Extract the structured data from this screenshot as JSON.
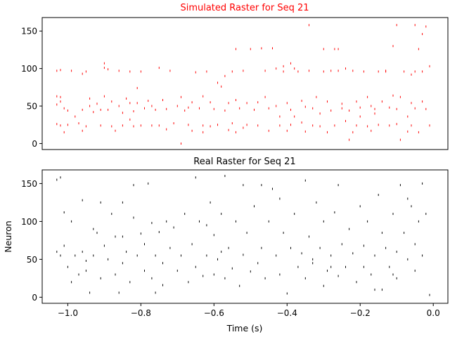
{
  "chart_data": [
    {
      "type": "scatter",
      "marker": "spike",
      "title": "Simulated Raster for Seq 21",
      "title_color": "#ff0000",
      "color": "#ff0000",
      "xlabel": "",
      "ylabel": "",
      "xlim": [
        -1.07,
        0.04
      ],
      "ylim": [
        -8,
        168
      ],
      "xticks": [],
      "yticks": [
        0,
        50,
        100,
        150
      ],
      "ytick_labels": [
        "0",
        "50",
        "100",
        "150"
      ],
      "grid": false,
      "points": [
        [
          -1.03,
          97
        ],
        [
          -1.03,
          63
        ],
        [
          -1.03,
          52
        ],
        [
          -1.03,
          26
        ],
        [
          -1.02,
          98
        ],
        [
          -1.02,
          62
        ],
        [
          -1.02,
          56
        ],
        [
          -1.02,
          24
        ],
        [
          -1.01,
          47
        ],
        [
          -1.01,
          15
        ],
        [
          -1.0,
          44
        ],
        [
          -1.0,
          25
        ],
        [
          -0.99,
          97
        ],
        [
          -0.98,
          36
        ],
        [
          -0.97,
          27
        ],
        [
          -0.96,
          93
        ],
        [
          -0.96,
          45
        ],
        [
          -0.96,
          17
        ],
        [
          -0.95,
          23
        ],
        [
          -0.95,
          96
        ],
        [
          -0.94,
          60
        ],
        [
          -0.94,
          50
        ],
        [
          -0.93,
          42
        ],
        [
          -0.92,
          53
        ],
        [
          -0.91,
          45
        ],
        [
          -0.91,
          24
        ],
        [
          -0.9,
          101
        ],
        [
          -0.9,
          107
        ],
        [
          -0.9,
          63
        ],
        [
          -0.89,
          99
        ],
        [
          -0.89,
          45
        ],
        [
          -0.88,
          23
        ],
        [
          -0.88,
          56
        ],
        [
          -0.87,
          17
        ],
        [
          -0.86,
          97
        ],
        [
          -0.86,
          50
        ],
        [
          -0.85,
          41
        ],
        [
          -0.85,
          24
        ],
        [
          -0.84,
          60
        ],
        [
          -0.83,
          54
        ],
        [
          -0.83,
          96
        ],
        [
          -0.82,
          23
        ],
        [
          -0.82,
          43
        ],
        [
          -0.81,
          74
        ],
        [
          -0.81,
          54
        ],
        [
          -0.8,
          96
        ],
        [
          -0.8,
          24
        ],
        [
          -0.79,
          47
        ],
        [
          -0.78,
          57
        ],
        [
          -0.77,
          50
        ],
        [
          -0.77,
          24
        ],
        [
          -0.76,
          45
        ],
        [
          -0.75,
          101
        ],
        [
          -0.75,
          24
        ],
        [
          -0.74,
          58
        ],
        [
          -0.73,
          46
        ],
        [
          -0.73,
          19
        ],
        [
          -0.72,
          97
        ],
        [
          -0.71,
          27
        ],
        [
          -0.7,
          50
        ],
        [
          -0.69,
          62
        ],
        [
          -0.69,
          0
        ],
        [
          -0.68,
          44
        ],
        [
          -0.67,
          25
        ],
        [
          -0.67,
          48
        ],
        [
          -0.66,
          55
        ],
        [
          -0.66,
          17
        ],
        [
          -0.65,
          95
        ],
        [
          -0.64,
          47
        ],
        [
          -0.63,
          24
        ],
        [
          -0.63,
          63
        ],
        [
          -0.62,
          96
        ],
        [
          -0.61,
          55
        ],
        [
          -0.61,
          23
        ],
        [
          -0.6,
          46
        ],
        [
          -0.59,
          25
        ],
        [
          -0.59,
          81
        ],
        [
          -0.58,
          76
        ],
        [
          -0.57,
          90
        ],
        [
          -0.57,
          44
        ],
        [
          -0.56,
          54
        ],
        [
          -0.56,
          18
        ],
        [
          -0.55,
          96
        ],
        [
          -0.55,
          27
        ],
        [
          -0.54,
          58
        ],
        [
          -0.54,
          15
        ],
        [
          -0.53,
          47
        ],
        [
          -0.52,
          97
        ],
        [
          -0.52,
          21
        ],
        [
          -0.51,
          54
        ],
        [
          -0.51,
          25
        ],
        [
          -0.49,
          45
        ],
        [
          -0.48,
          55
        ],
        [
          -0.48,
          24
        ],
        [
          -0.47,
          127
        ],
        [
          -0.46,
          97
        ],
        [
          -0.46,
          62
        ],
        [
          -0.45,
          17
        ],
        [
          -0.45,
          47
        ],
        [
          -0.44,
          127
        ],
        [
          -0.43,
          100
        ],
        [
          -0.43,
          50
        ],
        [
          -0.42,
          36
        ],
        [
          -0.42,
          24
        ],
        [
          -0.41,
          103
        ],
        [
          -0.41,
          96
        ],
        [
          -0.4,
          54
        ],
        [
          -0.4,
          17
        ],
        [
          -0.39,
          107
        ],
        [
          -0.39,
          45
        ],
        [
          -0.38,
          100
        ],
        [
          -0.38,
          36
        ],
        [
          -0.37,
          96
        ],
        [
          -0.36,
          57
        ],
        [
          -0.36,
          28
        ],
        [
          -0.35,
          49
        ],
        [
          -0.35,
          16
        ],
        [
          -0.34,
          97
        ],
        [
          -0.33,
          47
        ],
        [
          -0.33,
          24
        ],
        [
          -0.32,
          62
        ],
        [
          -0.31,
          40
        ],
        [
          -0.31,
          23
        ],
        [
          -0.3,
          96
        ],
        [
          -0.29,
          56
        ],
        [
          -0.29,
          15
        ],
        [
          -0.28,
          44
        ],
        [
          -0.27,
          126
        ],
        [
          -0.27,
          24
        ],
        [
          -0.26,
          97
        ],
        [
          -0.25,
          53
        ],
        [
          -0.25,
          47
        ],
        [
          -0.24,
          30
        ],
        [
          -0.23,
          44
        ],
        [
          -0.22,
          97
        ],
        [
          -0.22,
          15
        ],
        [
          -0.21,
          56
        ],
        [
          -0.21,
          24
        ],
        [
          -0.2,
          48
        ],
        [
          -0.19,
          96
        ],
        [
          -0.18,
          23
        ],
        [
          -0.18,
          62
        ],
        [
          -0.17,
          50
        ],
        [
          -0.17,
          17
        ],
        [
          -0.16,
          46
        ],
        [
          -0.15,
          96
        ],
        [
          -0.15,
          25
        ],
        [
          -0.14,
          56
        ],
        [
          -0.13,
          96
        ],
        [
          -0.12,
          48
        ],
        [
          -0.12,
          24
        ],
        [
          -0.11,
          130
        ],
        [
          -0.11,
          64
        ],
        [
          -0.1,
          46
        ],
        [
          -0.1,
          26
        ],
        [
          -0.09,
          5
        ],
        [
          -0.08,
          96
        ],
        [
          -0.07,
          36
        ],
        [
          -0.07,
          16
        ],
        [
          -0.06,
          54
        ],
        [
          -0.06,
          24
        ],
        [
          -0.05,
          96
        ],
        [
          -0.05,
          47
        ],
        [
          -0.04,
          126
        ],
        [
          -0.04,
          15
        ],
        [
          -0.03,
          96
        ],
        [
          -0.03,
          56
        ],
        [
          -0.02,
          46
        ],
        [
          -0.01,
          24
        ],
        [
          -0.01,
          103
        ],
        [
          -0.54,
          126
        ],
        [
          -0.5,
          126
        ],
        [
          -0.34,
          158
        ],
        [
          -0.3,
          126
        ],
        [
          -0.26,
          126
        ],
        [
          -0.24,
          100
        ],
        [
          -0.1,
          158
        ],
        [
          -0.05,
          158
        ],
        [
          -0.03,
          146
        ],
        [
          -0.02,
          156
        ],
        [
          -0.28,
          97
        ],
        [
          -0.13,
          97
        ],
        [
          -0.06,
          92
        ],
        [
          -0.09,
          62
        ],
        [
          -0.16,
          40
        ],
        [
          -0.2,
          36
        ],
        [
          -0.23,
          5
        ],
        [
          -0.39,
          25
        ],
        [
          -0.63,
          15
        ],
        [
          -0.83,
          32
        ]
      ]
    },
    {
      "type": "scatter",
      "marker": "spike",
      "title": "Real Raster for Seq 21",
      "title_color": "#000000",
      "color": "#000000",
      "xlabel": "Time (s)",
      "ylabel": "Neuron",
      "xlim": [
        -1.07,
        0.04
      ],
      "ylim": [
        -8,
        168
      ],
      "xticks": [
        -1.0,
        -0.8,
        -0.6,
        -0.4,
        -0.2,
        0.0
      ],
      "xtick_labels": [
        "−1.0",
        "−0.8",
        "−0.6",
        "−0.4",
        "−0.2",
        "0.0"
      ],
      "yticks": [
        0,
        50,
        100,
        150
      ],
      "ytick_labels": [
        "0",
        "50",
        "100",
        "150"
      ],
      "grid": false,
      "points": [
        [
          -1.03,
          155
        ],
        [
          -1.03,
          60
        ],
        [
          -1.02,
          158
        ],
        [
          -1.02,
          55
        ],
        [
          -1.01,
          112
        ],
        [
          -1.01,
          68
        ],
        [
          -1.0,
          40
        ],
        [
          -0.99,
          100
        ],
        [
          -0.99,
          20
        ],
        [
          -0.98,
          55
        ],
        [
          -0.97,
          30
        ],
        [
          -0.96,
          128
        ],
        [
          -0.96,
          60
        ],
        [
          -0.95,
          35
        ],
        [
          -0.94,
          6
        ],
        [
          -0.93,
          90
        ],
        [
          -0.93,
          55
        ],
        [
          -0.92,
          85
        ],
        [
          -0.91,
          25
        ],
        [
          -0.91,
          125
        ],
        [
          -0.9,
          68
        ],
        [
          -0.89,
          50
        ],
        [
          -0.88,
          110
        ],
        [
          -0.87,
          30
        ],
        [
          -0.87,
          80
        ],
        [
          -0.86,
          6
        ],
        [
          -0.85,
          125
        ],
        [
          -0.85,
          45
        ],
        [
          -0.84,
          60
        ],
        [
          -0.83,
          20
        ],
        [
          -0.82,
          148
        ],
        [
          -0.82,
          105
        ],
        [
          -0.81,
          55
        ],
        [
          -0.8,
          84
        ],
        [
          -0.79,
          35
        ],
        [
          -0.79,
          70
        ],
        [
          -0.78,
          150
        ],
        [
          -0.77,
          98
        ],
        [
          -0.77,
          25
        ],
        [
          -0.76,
          55
        ],
        [
          -0.75,
          86
        ],
        [
          -0.74,
          45
        ],
        [
          -0.74,
          16
        ],
        [
          -0.73,
          100
        ],
        [
          -0.72,
          65
        ],
        [
          -0.71,
          92
        ],
        [
          -0.7,
          35
        ],
        [
          -0.69,
          55
        ],
        [
          -0.68,
          110
        ],
        [
          -0.67,
          20
        ],
        [
          -0.66,
          70
        ],
        [
          -0.65,
          158
        ],
        [
          -0.65,
          40
        ],
        [
          -0.64,
          100
        ],
        [
          -0.63,
          28
        ],
        [
          -0.62,
          55
        ],
        [
          -0.61,
          125
        ],
        [
          -0.6,
          82
        ],
        [
          -0.6,
          30
        ],
        [
          -0.59,
          50
        ],
        [
          -0.58,
          110
        ],
        [
          -0.57,
          25
        ],
        [
          -0.57,
          160
        ],
        [
          -0.56,
          65
        ],
        [
          -0.55,
          38
        ],
        [
          -0.54,
          100
        ],
        [
          -0.53,
          15
        ],
        [
          -0.52,
          148
        ],
        [
          -0.52,
          56
        ],
        [
          -0.51,
          85
        ],
        [
          -0.5,
          34
        ],
        [
          -0.49,
          120
        ],
        [
          -0.48,
          45
        ],
        [
          -0.47,
          65
        ],
        [
          -0.46,
          25
        ],
        [
          -0.45,
          100
        ],
        [
          -0.44,
          143
        ],
        [
          -0.43,
          55
        ],
        [
          -0.42,
          30
        ],
        [
          -0.41,
          85
        ],
        [
          -0.4,
          5
        ],
        [
          -0.39,
          65
        ],
        [
          -0.38,
          110
        ],
        [
          -0.37,
          40
        ],
        [
          -0.36,
          58
        ],
        [
          -0.35,
          154
        ],
        [
          -0.35,
          25
        ],
        [
          -0.34,
          80
        ],
        [
          -0.33,
          45
        ],
        [
          -0.32,
          125
        ],
        [
          -0.31,
          65
        ],
        [
          -0.3,
          15
        ],
        [
          -0.3,
          100
        ],
        [
          -0.29,
          35
        ],
        [
          -0.28,
          55
        ],
        [
          -0.27,
          112
        ],
        [
          -0.26,
          28
        ],
        [
          -0.26,
          148
        ],
        [
          -0.25,
          70
        ],
        [
          -0.24,
          40
        ],
        [
          -0.23,
          90
        ],
        [
          -0.22,
          58
        ],
        [
          -0.21,
          20
        ],
        [
          -0.2,
          120
        ],
        [
          -0.19,
          68
        ],
        [
          -0.19,
          40
        ],
        [
          -0.18,
          100
        ],
        [
          -0.17,
          30
        ],
        [
          -0.16,
          55
        ],
        [
          -0.15,
          135
        ],
        [
          -0.14,
          85
        ],
        [
          -0.14,
          10
        ],
        [
          -0.13,
          65
        ],
        [
          -0.12,
          40
        ],
        [
          -0.11,
          110
        ],
        [
          -0.1,
          60
        ],
        [
          -0.1,
          25
        ],
        [
          -0.09,
          148
        ],
        [
          -0.08,
          85
        ],
        [
          -0.07,
          50
        ],
        [
          -0.06,
          120
        ],
        [
          -0.05,
          70
        ],
        [
          -0.05,
          35
        ],
        [
          -0.04,
          100
        ],
        [
          -0.03,
          150
        ],
        [
          -0.03,
          55
        ],
        [
          -0.02,
          110
        ],
        [
          -0.01,
          3
        ],
        [
          -0.85,
          80
        ],
        [
          -0.62,
          95
        ],
        [
          -0.47,
          148
        ],
        [
          -0.33,
          50
        ],
        [
          -0.16,
          10
        ],
        [
          -0.07,
          130
        ],
        [
          -0.95,
          48
        ],
        [
          -0.76,
          6
        ],
        [
          -0.58,
          60
        ],
        [
          -0.42,
          130
        ],
        [
          -0.28,
          40
        ],
        [
          -0.11,
          30
        ]
      ]
    }
  ]
}
